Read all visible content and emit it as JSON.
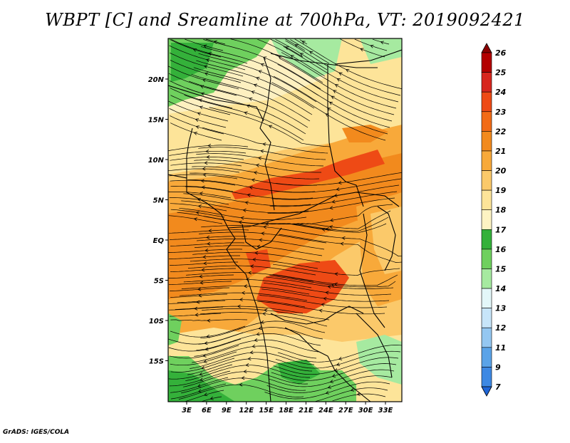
{
  "title": "WBPT [C] and Sreamline at 700hPa, VT: 2019092421",
  "footer": "GrADS: IGES/COLA",
  "map": {
    "lat_labels": [
      "20N",
      "15N",
      "10N",
      "5N",
      "EQ",
      "5S",
      "10S",
      "15S"
    ],
    "lat_values": [
      20,
      15,
      10,
      5,
      0,
      -5,
      -10,
      -15
    ],
    "lon_labels": [
      "3E",
      "6E",
      "9E",
      "12E",
      "15E",
      "18E",
      "21E",
      "24E",
      "27E",
      "30E",
      "33E"
    ],
    "lon_values": [
      3,
      6,
      9,
      12,
      15,
      18,
      21,
      24,
      27,
      30,
      33
    ]
  },
  "colorbar": {
    "labels": [
      "26",
      "25",
      "24",
      "23",
      "22",
      "21",
      "20",
      "19",
      "18",
      "17",
      "16",
      "15",
      "14",
      "13",
      "12",
      "11",
      "9",
      "7"
    ],
    "colors": [
      "#8b0000",
      "#b30000",
      "#d7261e",
      "#ee4a15",
      "#f26b16",
      "#f28a1d",
      "#f8a93a",
      "#fbc96a",
      "#fde499",
      "#fdf3c3",
      "#34b13a",
      "#6fd05e",
      "#a6eaa0",
      "#e3f7f9",
      "#c7e5f9",
      "#94c7f1",
      "#5aa3e8",
      "#3d88e3",
      "#1f66d8"
    ]
  }
}
